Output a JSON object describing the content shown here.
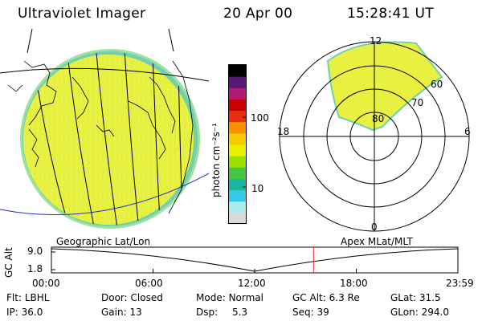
{
  "header": {
    "instrument": "Ultraviolet Imager",
    "date": "20 Apr 00",
    "time": "15:28:41 UT"
  },
  "colorbar": {
    "unit_label": "photon cm⁻²s⁻¹",
    "ticks": [
      "100",
      "10"
    ],
    "scale": "log",
    "colors": [
      "#d9d9d9",
      "#a8ecf0",
      "#38c8e8",
      "#18b8a0",
      "#40c840",
      "#98e000",
      "#e8f000",
      "#f8c800",
      "#f89000",
      "#e83010",
      "#c80000",
      "#b01878",
      "#581878",
      "#000000"
    ]
  },
  "polar_plot": {
    "mlt_labels": {
      "top": "12",
      "right": "6",
      "bottom": "0",
      "left": "18"
    },
    "lat_labels": [
      "80",
      "70",
      "60"
    ]
  },
  "timeline": {
    "left_title": "Geographic Lat/Lon",
    "right_title": "Apex MLat/MLT",
    "axis_label": "GC Alt",
    "y_ticks": [
      "9.0",
      "1.8"
    ],
    "x_ticks": [
      "00:00",
      "06:00",
      "12:00",
      "18:00",
      "23:59"
    ],
    "current_time_hours": 15.48,
    "altitude_max_re": 9.0,
    "altitude_min_re": 1.8
  },
  "footer": {
    "row1": [
      {
        "label": "Flt:",
        "value": "LBHL"
      },
      {
        "label": "Door:",
        "value": "Closed"
      },
      {
        "label": "Mode:",
        "value": "Normal"
      },
      {
        "label": "GC Alt:",
        "value": "6.3 Re"
      },
      {
        "label": "GLat:",
        "value": "31.5"
      }
    ],
    "row2": [
      {
        "label": "IP:",
        "value": "36.0"
      },
      {
        "label": "Gain:",
        "value": "13"
      },
      {
        "label": "Dsp:",
        "value": "5.3"
      },
      {
        "label": "Seq:",
        "value": "39"
      },
      {
        "label": "GLon:",
        "value": "294.0"
      }
    ]
  },
  "colors": {
    "image_fill": "#e8f040",
    "image_edge": "#40c8a0",
    "marker_line": "#e03020",
    "equator_line": "#2030d0"
  }
}
